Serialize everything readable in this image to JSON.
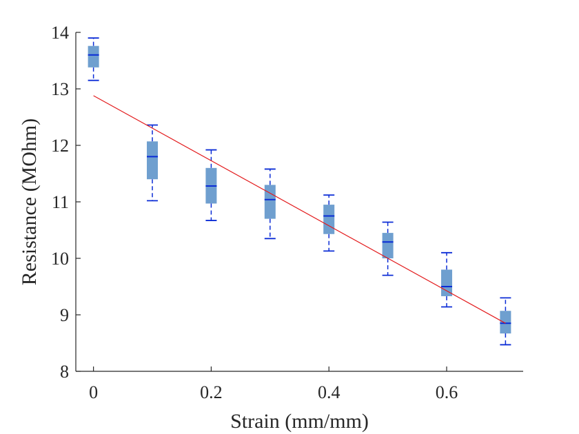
{
  "chart_data": {
    "type": "boxplot",
    "title": "",
    "xlabel": "Strain (mm/mm)",
    "ylabel": "Resistance (MOhm)",
    "xlim": [
      -0.03,
      0.73
    ],
    "ylim": [
      8,
      14
    ],
    "xticks": [
      0,
      0.2,
      0.4,
      0.6
    ],
    "xtick_labels": [
      "0",
      "0.2",
      "0.4",
      "0.6"
    ],
    "yticks": [
      8,
      9,
      10,
      11,
      12,
      13,
      14
    ],
    "ytick_labels": [
      "8",
      "9",
      "10",
      "11",
      "12",
      "13",
      "14"
    ],
    "grid": false,
    "legend": "none",
    "boxes": [
      {
        "x": 0.0,
        "whisker_low": 13.15,
        "q1": 13.38,
        "median": 13.6,
        "q3": 13.76,
        "whisker_high": 13.9
      },
      {
        "x": 0.1,
        "whisker_low": 11.02,
        "q1": 11.4,
        "median": 11.8,
        "q3": 12.07,
        "whisker_high": 12.36
      },
      {
        "x": 0.2,
        "whisker_low": 10.67,
        "q1": 10.97,
        "median": 11.28,
        "q3": 11.6,
        "whisker_high": 11.92
      },
      {
        "x": 0.3,
        "whisker_low": 10.35,
        "q1": 10.7,
        "median": 11.04,
        "q3": 11.3,
        "whisker_high": 11.58
      },
      {
        "x": 0.4,
        "whisker_low": 10.13,
        "q1": 10.43,
        "median": 10.75,
        "q3": 10.95,
        "whisker_high": 11.12
      },
      {
        "x": 0.5,
        "whisker_low": 9.7,
        "q1": 10.0,
        "median": 10.29,
        "q3": 10.45,
        "whisker_high": 10.64
      },
      {
        "x": 0.6,
        "whisker_low": 9.14,
        "q1": 9.33,
        "median": 9.5,
        "q3": 9.8,
        "whisker_high": 10.1
      },
      {
        "x": 0.7,
        "whisker_low": 8.47,
        "q1": 8.67,
        "median": 8.85,
        "q3": 9.07,
        "whisker_high": 9.3
      }
    ],
    "fit_line": {
      "x": [
        0,
        0.7
      ],
      "y": [
        12.88,
        8.85
      ]
    },
    "colors": {
      "box_fill": "#6f9fcf",
      "median": "#0a2bd6",
      "whisker": "#0a2bd6",
      "fit": "#e31a1c",
      "axis": "#262626"
    }
  }
}
